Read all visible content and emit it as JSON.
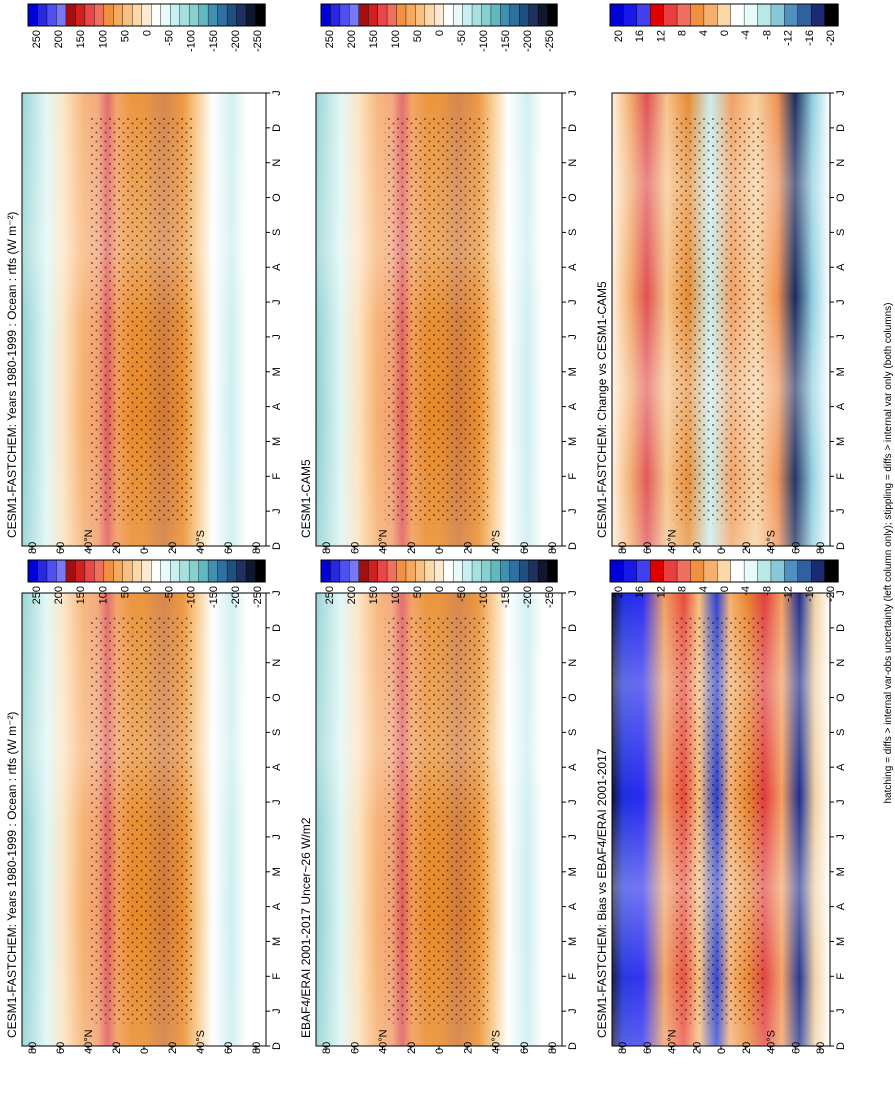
{
  "figure": {
    "footnote": "hatching = diffs > internal var-obs uncertainty (left column only); stippling = diffs > internal var only (both columns)"
  },
  "chart_data": [
    {
      "type": "heatmap",
      "title": "CESM1-FASTCHEM: Years 1980-1999 : Ocean : rtfs (W m⁻²)",
      "months": [
        "J",
        "F",
        "M",
        "A",
        "M",
        "J",
        "J",
        "A",
        "S",
        "O",
        "N",
        "D",
        "J"
      ],
      "month_first_label": "D",
      "lat_ticks": [
        "80",
        "60",
        "40°N",
        "20",
        "0",
        "20",
        "40°S",
        "60",
        "80"
      ],
      "colorbar": {
        "levels": [
          "250",
          "200",
          "150",
          "100",
          "50",
          "0",
          "-50",
          "-100",
          "-150",
          "-200",
          "-250"
        ]
      },
      "field": "climatology"
    },
    {
      "type": "heatmap",
      "title": "CESM1-FASTCHEM: Years 1980-1999 : Ocean : rtfs (W m⁻²)",
      "months": [
        "J",
        "F",
        "M",
        "A",
        "M",
        "J",
        "J",
        "A",
        "S",
        "O",
        "N",
        "D",
        "J"
      ],
      "month_first_label": "D",
      "lat_ticks": [
        "80",
        "60",
        "40°N",
        "20",
        "0",
        "20",
        "40°S",
        "60",
        "80"
      ],
      "colorbar": {
        "levels": [
          "250",
          "200",
          "150",
          "100",
          "50",
          "0",
          "-50",
          "-100",
          "-150",
          "-200",
          "-250"
        ]
      },
      "field": "climatology"
    },
    {
      "type": "heatmap",
      "title": "EBAF4/ERAI 2001-2017 Uncer~26 W/m2",
      "months": [
        "J",
        "F",
        "M",
        "A",
        "M",
        "J",
        "J",
        "A",
        "S",
        "O",
        "N",
        "D",
        "J"
      ],
      "month_first_label": "D",
      "lat_ticks": [
        "80",
        "60",
        "40°N",
        "20",
        "0",
        "20",
        "40°S",
        "60",
        "80"
      ],
      "colorbar": {
        "levels": [
          "250",
          "200",
          "150",
          "100",
          "50",
          "0",
          "-50",
          "-100",
          "-150",
          "-200",
          "-250"
        ]
      },
      "field": "observations"
    },
    {
      "type": "heatmap",
      "title": "CESM1-CAM5",
      "months": [
        "J",
        "F",
        "M",
        "A",
        "M",
        "J",
        "J",
        "A",
        "S",
        "O",
        "N",
        "D",
        "J"
      ],
      "month_first_label": "D",
      "lat_ticks": [
        "80",
        "60",
        "40°N",
        "20",
        "0",
        "20",
        "40°S",
        "60",
        "80"
      ],
      "colorbar": {
        "levels": [
          "250",
          "200",
          "150",
          "100",
          "50",
          "0",
          "-50",
          "-100",
          "-150",
          "-200",
          "-250"
        ]
      },
      "field": "climatology"
    },
    {
      "type": "heatmap",
      "title": "CESM1-FASTCHEM: Bias vs EBAF4/ERAI 2001-2017",
      "months": [
        "J",
        "F",
        "M",
        "A",
        "M",
        "J",
        "J",
        "A",
        "S",
        "O",
        "N",
        "D",
        "J"
      ],
      "month_first_label": "D",
      "lat_ticks": [
        "80",
        "60",
        "40°N",
        "20",
        "0",
        "20",
        "40°S",
        "60",
        "80"
      ],
      "colorbar": {
        "levels": [
          "20",
          "16",
          "12",
          "8",
          "4",
          "0",
          "-4",
          "-8",
          "-12",
          "-16",
          "-20"
        ]
      },
      "field": "bias"
    },
    {
      "type": "heatmap",
      "title": "CESM1-FASTCHEM: Change vs CESM1-CAM5",
      "months": [
        "J",
        "F",
        "M",
        "A",
        "M",
        "J",
        "J",
        "A",
        "S",
        "O",
        "N",
        "D",
        "J"
      ],
      "month_first_label": "D",
      "lat_ticks": [
        "80",
        "60",
        "40°N",
        "20",
        "0",
        "20",
        "40°S",
        "60",
        "80"
      ],
      "colorbar": {
        "levels": [
          "20",
          "16",
          "12",
          "8",
          "4",
          "0",
          "-4",
          "-8",
          "-12",
          "-16",
          "-20"
        ]
      },
      "field": "change"
    }
  ]
}
